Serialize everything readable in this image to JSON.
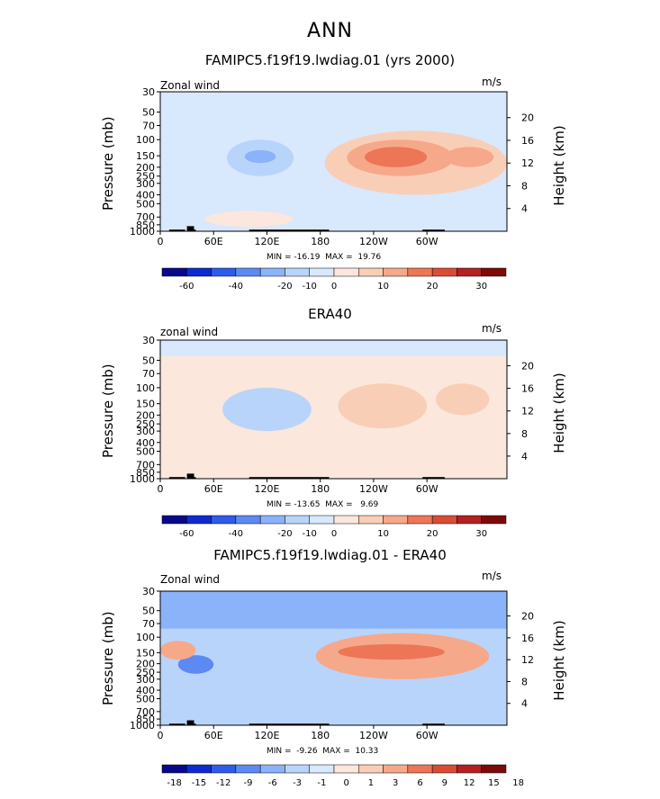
{
  "page_title": "ANN",
  "colors": {
    "palette_abs": [
      "#08088c",
      "#0f2ad1",
      "#2f5bea",
      "#5c8af2",
      "#8bb3fa",
      "#b9d4fb",
      "#d8e8fd",
      "#fbe7dc",
      "#f9ceb6",
      "#f6a88a",
      "#ec7656",
      "#db4c35",
      "#b52020",
      "#7d0a0a"
    ],
    "land": "#000000"
  },
  "chart_data": [
    {
      "type": "heatmap",
      "title": "FAMIPC5.f19f19.lwdiag.01 (yrs 2000)",
      "variable": "Zonal wind",
      "units": "m/s",
      "ylabel": "Pressure (mb)",
      "ylabel_right": "Height (km)",
      "x_ticks": [
        "0",
        "60E",
        "120E",
        "180",
        "120W",
        "60W"
      ],
      "y_ticks": [
        "30",
        "50",
        "70",
        "100",
        "150",
        "200",
        "250",
        "300",
        "400",
        "500",
        "700",
        "850",
        "1000"
      ],
      "y_ticks_right": [
        "20",
        "16",
        "12",
        "8",
        "4"
      ],
      "min_max": "MIN = -16.19  MAX =  19.76",
      "colorbar_labels": [
        "-60",
        "-40",
        "-20",
        "-10",
        "0",
        "10",
        "20",
        "30"
      ],
      "features": [
        {
          "lon": [
            75,
            150
          ],
          "p": [
            100,
            250
          ],
          "value": -10
        },
        {
          "lon": [
            95,
            130
          ],
          "p": [
            130,
            180
          ],
          "value": -15
        },
        {
          "lon": [
            185,
            390
          ],
          "p": [
            80,
            400
          ],
          "value": 5
        },
        {
          "lon": [
            210,
            330
          ],
          "p": [
            100,
            250
          ],
          "value": 12
        },
        {
          "lon": [
            230,
            300
          ],
          "p": [
            120,
            200
          ],
          "value": 18
        },
        {
          "lon": [
            320,
            375
          ],
          "p": [
            120,
            200
          ],
          "value": 10
        },
        {
          "lon": [
            50,
            150
          ],
          "p": [
            600,
            900
          ],
          "value": 4
        }
      ]
    },
    {
      "type": "heatmap",
      "title": "ERA40",
      "variable": "zonal wind",
      "units": "m/s",
      "ylabel": "Pressure (mb)",
      "ylabel_right": "Height (km)",
      "x_ticks": [
        "0",
        "60E",
        "120E",
        "180",
        "120W",
        "60W"
      ],
      "y_ticks": [
        "30",
        "50",
        "70",
        "100",
        "150",
        "200",
        "250",
        "300",
        "400",
        "500",
        "700",
        "850",
        "1000"
      ],
      "y_ticks_right": [
        "20",
        "16",
        "12",
        "8",
        "4"
      ],
      "min_max": "MIN = -13.65  MAX =   9.69",
      "colorbar_labels": [
        "-60",
        "-40",
        "-20",
        "-10",
        "0",
        "10",
        "20",
        "30"
      ],
      "features": [
        {
          "lon": [
            70,
            170
          ],
          "p": [
            100,
            300
          ],
          "value": -8
        },
        {
          "lon": [
            200,
            300
          ],
          "p": [
            90,
            280
          ],
          "value": 7
        },
        {
          "lon": [
            310,
            370
          ],
          "p": [
            90,
            200
          ],
          "value": 6
        }
      ]
    },
    {
      "type": "heatmap",
      "title": "FAMIPC5.f19f19.lwdiag.01 - ERA40",
      "variable": "Zonal wind",
      "units": "m/s",
      "ylabel": "Pressure (mb)",
      "ylabel_right": "Height (km)",
      "x_ticks": [
        "0",
        "60E",
        "120E",
        "180",
        "120W",
        "60W"
      ],
      "y_ticks": [
        "30",
        "50",
        "70",
        "100",
        "150",
        "200",
        "250",
        "300",
        "400",
        "500",
        "700",
        "850",
        "1000"
      ],
      "y_ticks_right": [
        "20",
        "16",
        "12",
        "8",
        "4"
      ],
      "min_max": "MIN =  -9.26  MAX =  10.33",
      "colorbar_labels": [
        "-18",
        "-15",
        "-12",
        "-9",
        "-6",
        "-3",
        "-1",
        "0",
        "1",
        "3",
        "6",
        "9",
        "12",
        "15",
        "18"
      ],
      "features": [
        {
          "lon": [
            0,
            390
          ],
          "p": [
            30,
            70
          ],
          "value": -4
        },
        {
          "lon": [
            20,
            60
          ],
          "p": [
            160,
            260
          ],
          "value": -9
        },
        {
          "lon": [
            175,
            370
          ],
          "p": [
            90,
            300
          ],
          "value": 4
        },
        {
          "lon": [
            200,
            320
          ],
          "p": [
            120,
            180
          ],
          "value": 8
        },
        {
          "lon": [
            0,
            40
          ],
          "p": [
            110,
            180
          ],
          "value": 3
        }
      ]
    }
  ]
}
